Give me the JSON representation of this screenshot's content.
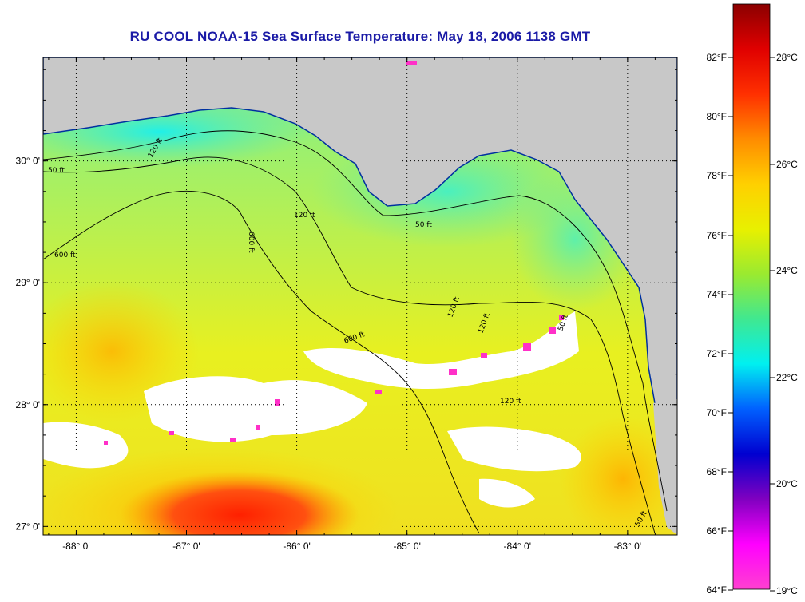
{
  "title": "RU COOL  NOAA-15  Sea Surface Temperature:  May 18, 2006 1138 GMT",
  "map": {
    "lon_range": [
      -88.3,
      -82.55
    ],
    "lat_range": [
      26.93,
      30.85
    ],
    "lat_labels": [
      {
        "value": 30,
        "text": "30° 0'"
      },
      {
        "value": 29,
        "text": "29° 0'"
      },
      {
        "value": 28,
        "text": "28° 0'"
      },
      {
        "value": 27,
        "text": "27° 0'"
      }
    ],
    "lon_labels": [
      {
        "value": -88,
        "text": "-88° 0'"
      },
      {
        "value": -87,
        "text": "-87° 0'"
      },
      {
        "value": -86,
        "text": "-86° 0'"
      },
      {
        "value": -85,
        "text": "-85° 0'"
      },
      {
        "value": -84,
        "text": "-84° 0'"
      },
      {
        "value": -83,
        "text": "-83° 0'"
      }
    ],
    "contour_labels": [
      {
        "text": "50 ft"
      },
      {
        "text": "120 ft"
      },
      {
        "text": "600 ft"
      },
      {
        "text": "120 ft"
      },
      {
        "text": "50 ft"
      },
      {
        "text": "120 ft"
      },
      {
        "text": "600 ft"
      },
      {
        "text": "120 ft"
      },
      {
        "text": "600 ft"
      },
      {
        "text": "50 ft"
      },
      {
        "text": "120 ft"
      },
      {
        "text": "50 ft"
      }
    ],
    "colors": {
      "land": "#c8c8c8",
      "cloud": "#ffffff",
      "contour": "#000000"
    }
  },
  "colorbar": {
    "f_labels": [
      "82°F",
      "80°F",
      "78°F",
      "76°F",
      "74°F",
      "72°F",
      "70°F",
      "68°F",
      "66°F",
      "64°F"
    ],
    "c_labels": [
      "28°C",
      "26°C",
      "24°C",
      "22°C",
      "20°C",
      "19°C"
    ],
    "stops": [
      "#8b0000",
      "#e00000",
      "#ff3000",
      "#ff8c00",
      "#ffd000",
      "#e8f000",
      "#9aea30",
      "#40e890",
      "#00f0f0",
      "#0060ff",
      "#0000d0",
      "#8000c0",
      "#ff00ff",
      "#ff40d0"
    ]
  }
}
